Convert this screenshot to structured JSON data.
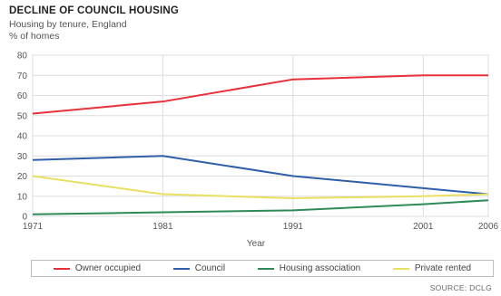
{
  "chart_data": {
    "type": "line",
    "title": "DECLINE OF COUNCIL HOUSING",
    "subtitle": "Housing by tenure, England",
    "ylabel": "% of homes",
    "xlabel": "Year",
    "x": [
      1971,
      1981,
      1991,
      2001,
      2006
    ],
    "x_tick_labels": [
      "1971",
      "1981",
      "1991",
      "2001",
      "2006"
    ],
    "ylim": [
      0,
      80
    ],
    "y_ticks": [
      0,
      10,
      20,
      30,
      40,
      50,
      60,
      70,
      80
    ],
    "y_tick_labels": [
      "0",
      "10",
      "20",
      "30",
      "40",
      "50",
      "60",
      "70",
      "80"
    ],
    "grid": true,
    "legend_position": "bottom",
    "series": [
      {
        "name": "Owner occupied",
        "color": "#e8303a",
        "values": [
          51,
          57,
          68,
          70,
          70
        ]
      },
      {
        "name": "Council",
        "color": "#2f5fa8",
        "values": [
          28,
          30,
          20,
          14,
          11
        ]
      },
      {
        "name": "Housing association",
        "color": "#2e8b57",
        "values": [
          1,
          2,
          3,
          6,
          8
        ]
      },
      {
        "name": "Private rented",
        "color": "#e8e060",
        "values": [
          20,
          11,
          9,
          10,
          11
        ]
      }
    ],
    "source": "SOURCE: DCLG"
  }
}
